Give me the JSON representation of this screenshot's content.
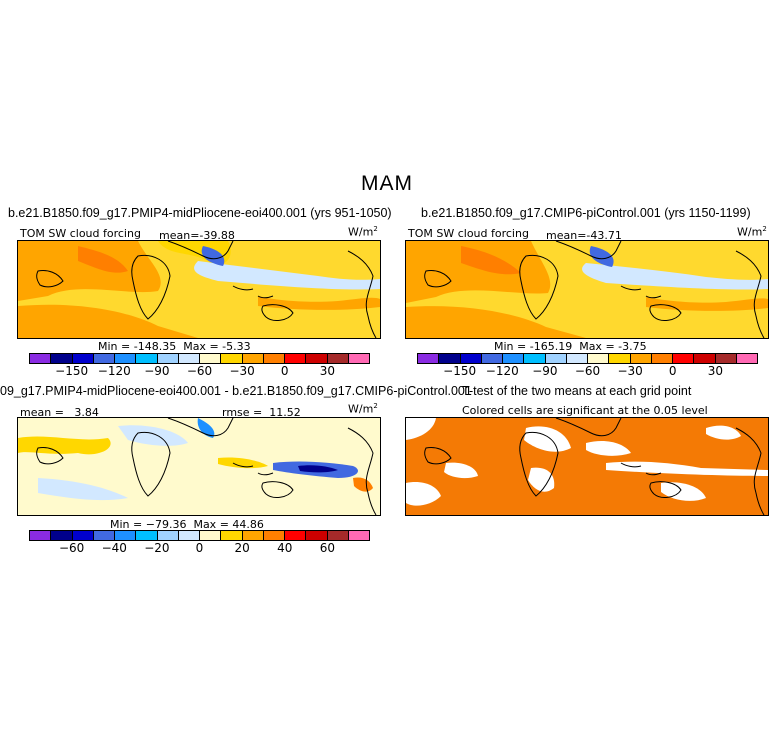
{
  "figure": {
    "season": "MAM"
  },
  "chart_data": [
    {
      "type": "heatmap",
      "title": "b.e21.B1850.f09_g17.PMIP4-midPliocene-eoi400.001 (yrs 951-1050)",
      "left_label": "TOM SW cloud forcing",
      "mean_label": "mean=",
      "mean": "-39.88",
      "units": "W/m",
      "units_sup": "2",
      "min_label": "Min =",
      "min": "-148.35",
      "max_label": "Max =",
      "max": "-5.33",
      "colorbar_ticks": [
        "−150",
        "−120",
        "−90",
        "−60",
        "−30",
        "0",
        "30"
      ]
    },
    {
      "type": "heatmap",
      "title": "b.e21.B1850.f09_g17.CMIP6-piControl.001 (yrs 1150-1199)",
      "left_label": "TOM SW cloud forcing",
      "mean_label": "mean=",
      "mean": "-43.71",
      "units": "W/m",
      "units_sup": "2",
      "min_label": "Min =",
      "min": "-165.19",
      "max_label": "Max =",
      "max": "-3.75",
      "colorbar_ticks": [
        "−150",
        "−120",
        "−90",
        "−60",
        "−30",
        "0",
        "30"
      ]
    },
    {
      "type": "heatmap",
      "title": "09_g17.PMIP4-midPliocene-eoi400.001 - b.e21.B1850.f09_g17.CMIP6-piControl.001",
      "mean_label": "mean =",
      "mean": "3.84",
      "rmse_label": "rmse =",
      "rmse": "11.52",
      "units": "W/m",
      "units_sup": "2",
      "min_label": "Min =",
      "min": "−79.36",
      "max_label": "Max =",
      "max": "44.86",
      "colorbar_ticks": [
        "−60",
        "−40",
        "−20",
        "0",
        "20",
        "40",
        "60"
      ]
    },
    {
      "type": "heatmap",
      "title": "T-test of the two means at each grid point",
      "subtitle": "Colored cells are significant at the 0.05 level",
      "significant_color": "#f47a05"
    }
  ],
  "palettes": {
    "abs": [
      "#8a2be2",
      "#00008b",
      "#0000cd",
      "#4169e1",
      "#1e90ff",
      "#00bfff",
      "#a0d2ff",
      "#d2e8ff",
      "#fffacd",
      "#ffd700",
      "#ffa500",
      "#ff7f00",
      "#ff0000",
      "#cd0000",
      "#a52a2a",
      "#ff69b4"
    ],
    "diff": [
      "#8a2be2",
      "#00008b",
      "#0000cd",
      "#4169e1",
      "#1e90ff",
      "#00bfff",
      "#a0d2ff",
      "#d2e8ff",
      "#fffacd",
      "#ffd700",
      "#ffa500",
      "#ff7f00",
      "#ff0000",
      "#cd0000",
      "#a52a2a",
      "#ff69b4"
    ]
  }
}
